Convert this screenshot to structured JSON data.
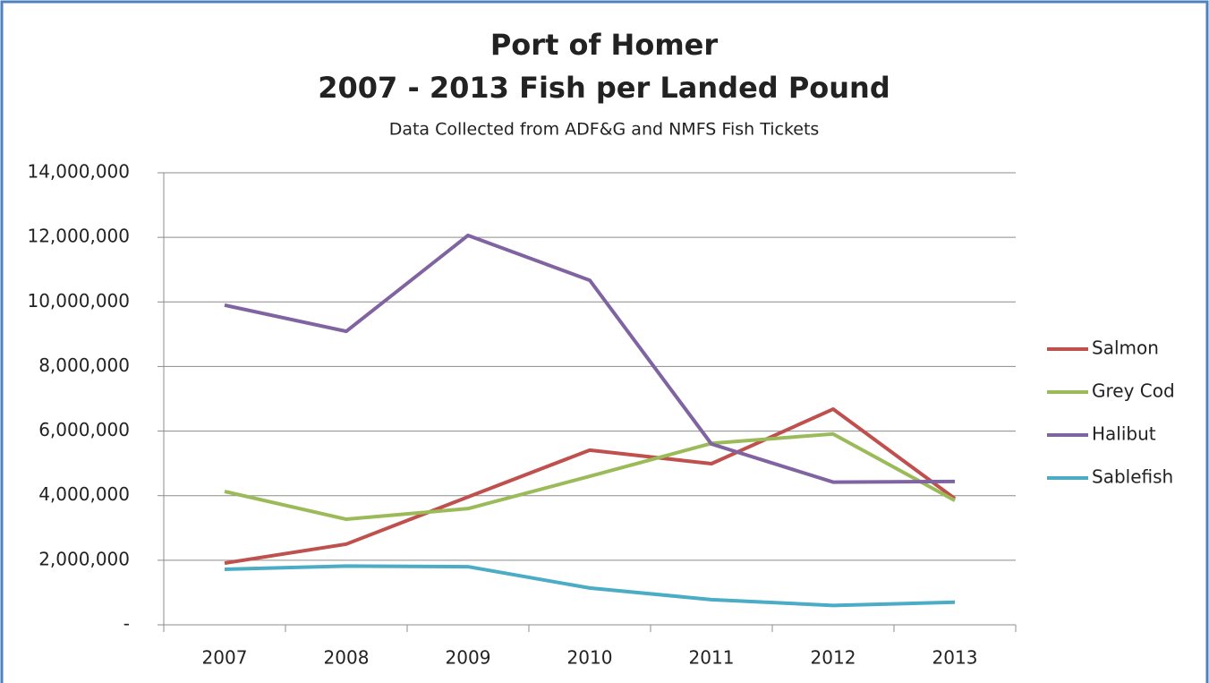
{
  "chart_data": {
    "type": "line",
    "title": [
      "Port of Homer",
      "2007 - 2013 Fish per Landed Pound"
    ],
    "subtitle": "Data Collected from ADF&G and NMFS Fish Tickets",
    "categories": [
      "2007",
      "2008",
      "2009",
      "2010",
      "2011",
      "2012",
      "2013"
    ],
    "series": [
      {
        "name": "Salmon",
        "color": "#c0504d",
        "values": [
          1910000,
          2500000,
          3960000,
          5410000,
          4990000,
          6680000,
          3910000
        ]
      },
      {
        "name": "Grey Cod",
        "color": "#9bbb59",
        "values": [
          4130000,
          3270000,
          3600000,
          4600000,
          5620000,
          5910000,
          3850000
        ]
      },
      {
        "name": "Halibut",
        "color": "#8064a2",
        "values": [
          9900000,
          9090000,
          12060000,
          10670000,
          5600000,
          4420000,
          4440000
        ]
      },
      {
        "name": "Sablefish",
        "color": "#4bacc6",
        "values": [
          1720000,
          1820000,
          1800000,
          1140000,
          780000,
          600000,
          700000
        ]
      }
    ],
    "ylim": [
      0,
      14000000
    ],
    "yticks": [
      {
        "value": 0,
        "label": "-"
      },
      {
        "value": 2000000,
        "label": "2,000,000"
      },
      {
        "value": 4000000,
        "label": "4,000,000"
      },
      {
        "value": 6000000,
        "label": "6,000,000"
      },
      {
        "value": 8000000,
        "label": "8,000,000"
      },
      {
        "value": 10000000,
        "label": "10,000,000"
      },
      {
        "value": 12000000,
        "label": "12,000,000"
      },
      {
        "value": 14000000,
        "label": "14,000,000"
      }
    ],
    "grid": true,
    "legend": "right"
  }
}
